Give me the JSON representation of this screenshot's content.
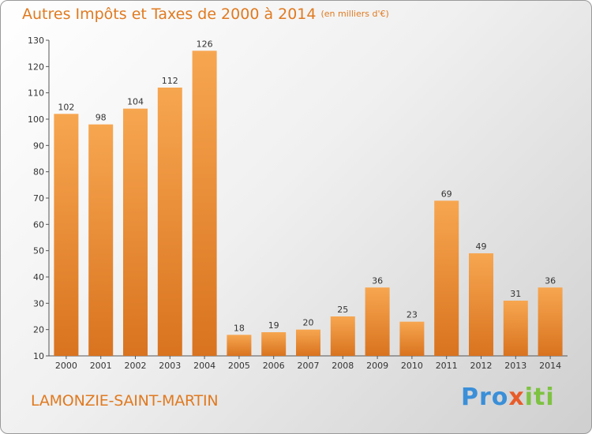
{
  "title": "Autres Impôts et Taxes de 2000 à 2014",
  "unit": "(en milliers d'€)",
  "commune": "LAMONZIE-SAINT-MARTIN",
  "logo": {
    "p1": "Pro",
    "p2": "x",
    "p3": "iti"
  },
  "colors": {
    "bar_top": "#f7a650",
    "bar_bottom": "#d9731f",
    "accent": "#e07a20"
  },
  "chart_data": {
    "type": "bar",
    "title": "Autres Impôts et Taxes de 2000 à 2014",
    "subtitle": "(en milliers d'€)",
    "xlabel": "",
    "ylabel": "",
    "categories": [
      "2000",
      "2001",
      "2002",
      "2003",
      "2004",
      "2005",
      "2006",
      "2007",
      "2008",
      "2009",
      "2010",
      "2011",
      "2012",
      "2013",
      "2014"
    ],
    "values": [
      102,
      98,
      104,
      112,
      126,
      18,
      19,
      20,
      25,
      36,
      23,
      69,
      49,
      31,
      36
    ],
    "ylim": [
      10,
      130
    ],
    "yticks": [
      10,
      20,
      30,
      40,
      50,
      60,
      70,
      80,
      90,
      100,
      110,
      120,
      130
    ],
    "grid": false,
    "legend": "none"
  }
}
